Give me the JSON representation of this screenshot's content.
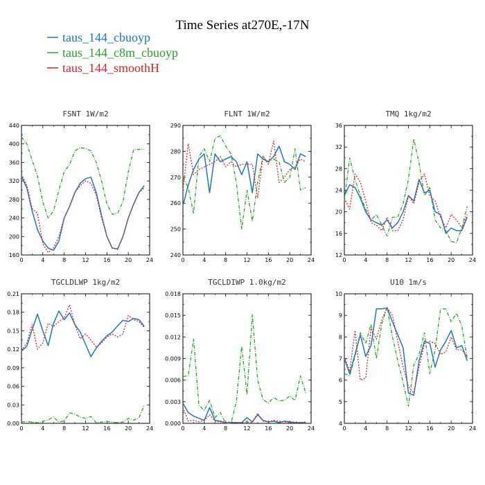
{
  "figure": {
    "title": "Time Series at270E,-17N"
  },
  "colors": {
    "taus_144_cbuoyp": "#1f77b4",
    "taus_144_c8m_cbuoyp": "#2ca02c",
    "taus_144_smoothH": "#d62728"
  },
  "legend": [
    {
      "name": "taus_144_cbuoyp",
      "color": "#1f77b4",
      "dash": "solid"
    },
    {
      "name": "taus_144_c8m_cbuoyp",
      "color": "#2ca02c",
      "dash": "dashdot"
    },
    {
      "name": "taus_144_smoothH",
      "color": "#d62728",
      "dash": "dotted"
    }
  ],
  "chart_data": [
    {
      "type": "line",
      "title": "FSNT   1W/m2",
      "x": [
        0,
        1,
        2,
        3,
        4,
        5,
        6,
        7,
        8,
        9,
        10,
        11,
        12,
        13,
        14,
        15,
        16,
        17,
        18,
        19,
        20,
        21,
        22,
        23
      ],
      "xlim": [
        0,
        24
      ],
      "xticks": [
        0,
        4,
        8,
        12,
        16,
        20,
        24
      ],
      "ylim": [
        160,
        440
      ],
      "yticks": [
        160,
        200,
        240,
        280,
        320,
        360,
        400,
        440
      ],
      "series": [
        {
          "name": "taus_144_cbuoyp",
          "values": [
            330,
            305,
            255,
            215,
            190,
            175,
            170,
            190,
            240,
            265,
            295,
            315,
            325,
            328,
            295,
            245,
            200,
            175,
            173,
            200,
            240,
            270,
            295,
            310
          ]
        },
        {
          "name": "taus_144_c8m_cbuoyp",
          "values": [
            415,
            400,
            365,
            330,
            275,
            240,
            255,
            300,
            340,
            355,
            385,
            392,
            390,
            385,
            360,
            320,
            270,
            248,
            250,
            275,
            340,
            388,
            388,
            388
          ]
        },
        {
          "name": "taus_144_smoothH",
          "values": [
            335,
            310,
            260,
            250,
            185,
            165,
            175,
            200,
            240,
            265,
            295,
            310,
            320,
            315,
            290,
            240,
            200,
            175,
            172,
            200,
            240,
            270,
            295,
            305
          ]
        }
      ]
    },
    {
      "type": "line",
      "title": "FLNT   1W/m2",
      "x": [
        0,
        1,
        2,
        3,
        4,
        5,
        6,
        7,
        8,
        9,
        10,
        11,
        12,
        13,
        14,
        15,
        16,
        17,
        18,
        19,
        20,
        21,
        22,
        23
      ],
      "xlim": [
        0,
        24
      ],
      "xticks": [
        0,
        4,
        8,
        12,
        16,
        20,
        24
      ],
      "ylim": [
        240,
        290
      ],
      "yticks": [
        240,
        250,
        260,
        270,
        280,
        290
      ],
      "series": [
        {
          "name": "taus_144_cbuoyp",
          "values": [
            259,
            267,
            273,
            277,
            279,
            264,
            279,
            276,
            277,
            278,
            276,
            271,
            276,
            264,
            279,
            277,
            276,
            278,
            282,
            276,
            275,
            273,
            279,
            278
          ]
        },
        {
          "name": "taus_144_c8m_cbuoyp",
          "values": [
            270,
            266,
            256,
            278,
            281,
            276,
            285,
            286,
            282,
            279,
            268,
            250,
            265,
            253,
            268,
            278,
            276,
            277,
            276,
            268,
            270,
            281,
            265,
            266
          ]
        },
        {
          "name": "taus_144_smoothH",
          "values": [
            265,
            283,
            271,
            273,
            274,
            275,
            276,
            278,
            274,
            276,
            274,
            275,
            275,
            275,
            262,
            278,
            275,
            284,
            268,
            270,
            273,
            274,
            277,
            276
          ]
        }
      ]
    },
    {
      "type": "line",
      "title": "TMQ   1kg/m2",
      "x": [
        0,
        1,
        2,
        3,
        4,
        5,
        6,
        7,
        8,
        9,
        10,
        11,
        12,
        13,
        14,
        15,
        16,
        17,
        18,
        19,
        20,
        21,
        22,
        23
      ],
      "xlim": [
        0,
        24
      ],
      "xticks": [
        0,
        4,
        8,
        12,
        16,
        20,
        24
      ],
      "ylim": [
        12,
        36
      ],
      "yticks": [
        12,
        16,
        20,
        24,
        28,
        32,
        36
      ],
      "series": [
        {
          "name": "taus_144_cbuoyp",
          "values": [
            23,
            25,
            24.5,
            22.5,
            20,
            18.5,
            18,
            17.5,
            18.5,
            17,
            18,
            20,
            23,
            22,
            26,
            23.5,
            24,
            20,
            19.5,
            16,
            17,
            16.5,
            16.5,
            19
          ]
        },
        {
          "name": "taus_144_c8m_cbuoyp",
          "values": [
            22,
            30,
            26,
            23,
            20.5,
            18.5,
            19.5,
            17.5,
            15.5,
            19,
            19,
            21.5,
            26,
            33.5,
            29,
            23,
            24.5,
            18.5,
            17,
            16.5,
            14.5,
            14.3,
            17,
            21
          ]
        },
        {
          "name": "taus_144_smoothH",
          "values": [
            22.5,
            20.5,
            27,
            25.5,
            22,
            18,
            17.5,
            16.5,
            19,
            16.5,
            16.5,
            18.5,
            23,
            21.5,
            25.5,
            27,
            23,
            22,
            19,
            17,
            19.5,
            18.5,
            17,
            19.5
          ]
        }
      ]
    },
    {
      "type": "line",
      "title": "TGCLDLWP   1kg/m2",
      "x": [
        0,
        1,
        2,
        3,
        4,
        5,
        6,
        7,
        8,
        9,
        10,
        11,
        12,
        13,
        14,
        15,
        16,
        17,
        18,
        19,
        20,
        21,
        22,
        23
      ],
      "xlim": [
        0,
        24
      ],
      "xticks": [
        0,
        4,
        8,
        12,
        16,
        20,
        24
      ],
      "ylim": [
        0,
        0.21
      ],
      "yticks": [
        0.0,
        0.03,
        0.06,
        0.09,
        0.12,
        0.15,
        0.18,
        0.21
      ],
      "series": [
        {
          "name": "taus_144_cbuoyp",
          "values": [
            0.117,
            0.125,
            0.152,
            0.177,
            0.15,
            0.126,
            0.162,
            0.182,
            0.168,
            0.179,
            0.16,
            0.148,
            0.128,
            0.108,
            0.122,
            0.133,
            0.142,
            0.148,
            0.158,
            0.167,
            0.165,
            0.17,
            0.168,
            0.157
          ]
        },
        {
          "name": "taus_144_c8m_cbuoyp",
          "values": [
            0.002,
            0.003,
            0.002,
            0.001,
            0.003,
            0.006,
            0.01,
            0.002,
            0.004,
            0.017,
            0.015,
            0.01,
            0.008,
            0.011,
            0.001,
            0.002,
            0.003,
            0.002,
            0.001,
            0.002,
            0.008,
            0.005,
            0.009,
            0.03
          ]
        },
        {
          "name": "taus_144_smoothH",
          "values": [
            0.118,
            0.13,
            0.16,
            0.12,
            0.13,
            0.162,
            0.157,
            0.165,
            0.171,
            0.192,
            0.16,
            0.137,
            0.145,
            0.135,
            0.124,
            0.13,
            0.14,
            0.145,
            0.14,
            0.145,
            0.175,
            0.168,
            0.165,
            0.155
          ]
        }
      ]
    },
    {
      "type": "line",
      "title": "TGCLDIWP   1.0kg/m2",
      "x": [
        0,
        1,
        2,
        3,
        4,
        5,
        6,
        7,
        8,
        9,
        10,
        11,
        12,
        13,
        14,
        15,
        16,
        17,
        18,
        19,
        20,
        21,
        22,
        23
      ],
      "xlim": [
        0,
        24
      ],
      "xticks": [
        0,
        4,
        8,
        12,
        16,
        20,
        24
      ],
      "ylim": [
        0,
        0.018
      ],
      "yticks": [
        0.0,
        0.003,
        0.006,
        0.009,
        0.012,
        0.015,
        0.018
      ],
      "series": [
        {
          "name": "taus_144_cbuoyp",
          "values": [
            0.0028,
            0.0015,
            0.001,
            0.0007,
            0.0004,
            0.0022,
            0.0004,
            0.0003,
            0.0001,
            0.0001,
            0.0001,
            0.0001,
            0.0008,
            0.0002,
            0.0012,
            0.0004,
            0.0002,
            0.0003,
            0.0001,
            0.0003,
            0.0002,
            0.0001,
            0.0001,
            0.0001
          ]
        },
        {
          "name": "taus_144_c8m_cbuoyp",
          "values": [
            0.0065,
            0.0066,
            0.0117,
            0.0025,
            0.0018,
            0.0032,
            0.0008,
            0.0015,
            0.0,
            0.0,
            0.003,
            0.0107,
            0.004,
            0.0151,
            0.006,
            0.0033,
            0.0028,
            0.0036,
            0.0031,
            0.0032,
            0.0038,
            0.0032,
            0.0066,
            0.0042
          ]
        },
        {
          "name": "taus_144_smoothH",
          "values": [
            0.0022,
            0.0003,
            0.0004,
            0.0002,
            0.0004,
            0.0012,
            0.0003,
            0.0002,
            0.0001,
            0.0002,
            0.0001,
            0.0001,
            0.0002,
            0.0001,
            0.0014,
            0.0003,
            0.0002,
            0.0004,
            0.0003,
            0.0002,
            0.0001,
            0.0002,
            0.0001,
            0.0002
          ]
        }
      ]
    },
    {
      "type": "line",
      "title": "U10   1m/s",
      "x": [
        0,
        1,
        2,
        3,
        4,
        5,
        6,
        7,
        8,
        9,
        10,
        11,
        12,
        13,
        14,
        15,
        16,
        17,
        18,
        19,
        20,
        21,
        22,
        23
      ],
      "xlim": [
        0,
        24
      ],
      "xticks": [
        0,
        4,
        8,
        12,
        16,
        20,
        24
      ],
      "ylim": [
        4,
        10
      ],
      "yticks": [
        4,
        5,
        6,
        7,
        8,
        9,
        10
      ],
      "series": [
        {
          "name": "taus_144_cbuoyp",
          "values": [
            7.0,
            6.3,
            7.2,
            8.1,
            7.1,
            7.6,
            9.3,
            9.3,
            9.35,
            8.7,
            8.1,
            7.5,
            5.4,
            5.3,
            6.9,
            7.8,
            7.7,
            6.6,
            7.4,
            7.8,
            8.3,
            7.5,
            7.6,
            6.9
          ]
        },
        {
          "name": "taus_144_c8m_cbuoyp",
          "values": [
            6.3,
            6.2,
            7.1,
            8.2,
            7.7,
            8.6,
            7.0,
            8.6,
            9.4,
            8.0,
            6.9,
            5.9,
            4.8,
            6.7,
            7.2,
            8.2,
            6.3,
            7.4,
            9.3,
            9.3,
            8.7,
            9.1,
            8.5,
            7.0
          ]
        },
        {
          "name": "taus_144_smoothH",
          "values": [
            7.1,
            6.4,
            8.3,
            6.0,
            6.1,
            8.4,
            7.9,
            8.8,
            9.35,
            9.0,
            7.8,
            6.6,
            5.7,
            5.4,
            6.6,
            7.7,
            7.8,
            7.7,
            7.2,
            7.3,
            8.0,
            7.4,
            7.4,
            7.1
          ]
        }
      ]
    }
  ]
}
